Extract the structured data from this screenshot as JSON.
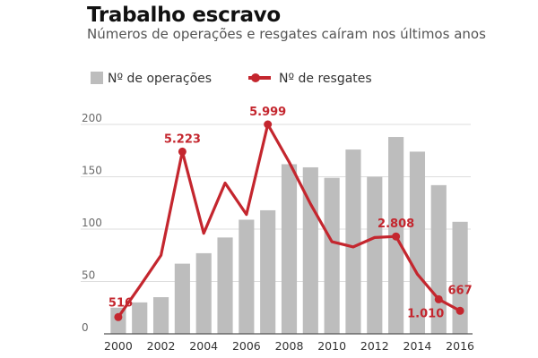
{
  "title": "Trabalho escravo",
  "subtitle": "Números de operações e resgates caíram nos últimos anos",
  "chart_data": {
    "type": "bar",
    "title": "Trabalho escravo",
    "subtitle": "Números de operações e resgates caíram nos últimos anos",
    "legend_position": "top-left",
    "grid": true,
    "categories": [
      2000,
      2001,
      2002,
      2003,
      2004,
      2005,
      2006,
      2007,
      2008,
      2009,
      2010,
      2011,
      2012,
      2013,
      2014,
      2015,
      2016
    ],
    "x_tick_labels": [
      "2000",
      "2002",
      "2004",
      "2006",
      "2008",
      "2010",
      "2012",
      "2014",
      "2016"
    ],
    "y_tick_labels": [
      "0",
      "50",
      "100",
      "150",
      "200"
    ],
    "ylim": [
      0,
      200
    ],
    "series": [
      {
        "name": "Nº de operações",
        "type": "bar",
        "color": "#bdbdbd",
        "values": [
          25,
          30,
          35,
          67,
          77,
          92,
          109,
          118,
          162,
          159,
          149,
          176,
          150,
          188,
          174,
          142,
          107
        ]
      },
      {
        "name": "Nº de resgates",
        "type": "line",
        "color": "#c4262e",
        "scale_note_equivalent": "plotted on axis scale",
        "values": [
          16,
          45,
          75,
          174,
          96,
          144,
          114,
          200,
          164,
          124,
          88,
          83,
          92,
          93,
          57,
          33,
          22
        ],
        "point_labels": [
          {
            "year": 2000,
            "text": "516"
          },
          {
            "year": 2003,
            "text": "5.223"
          },
          {
            "year": 2007,
            "text": "5.999"
          },
          {
            "year": 2013,
            "text": "2.808"
          },
          {
            "year": 2015,
            "text": "1.010"
          },
          {
            "year": 2016,
            "text": "667"
          }
        ]
      }
    ]
  }
}
